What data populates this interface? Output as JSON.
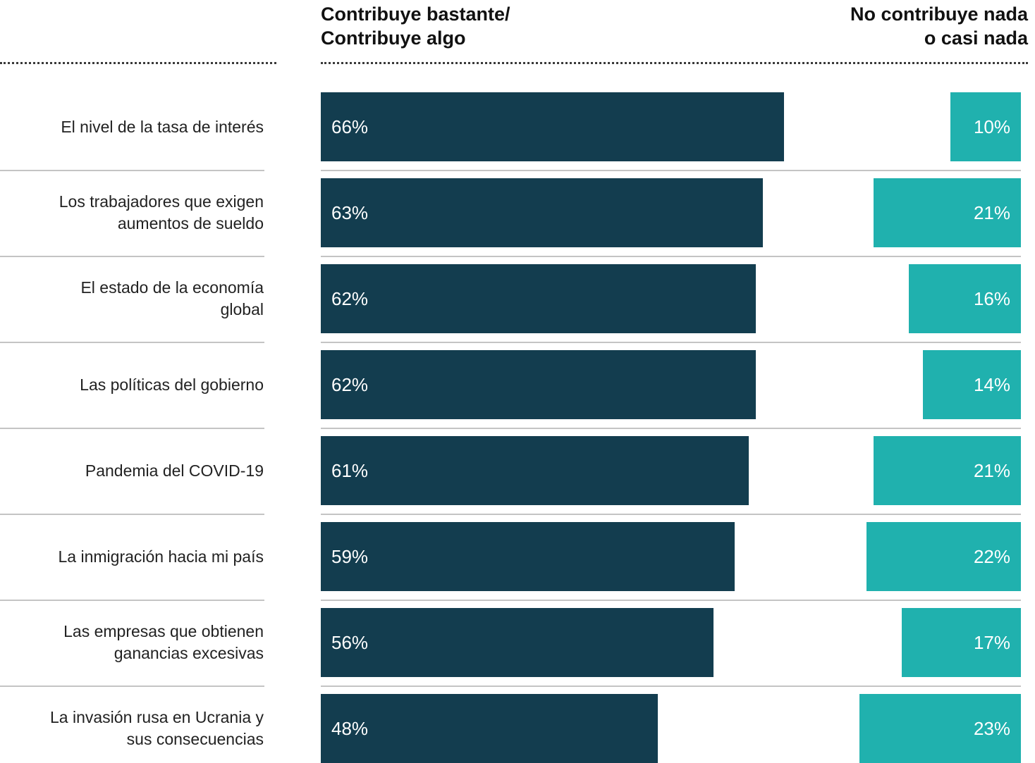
{
  "chart_data": {
    "type": "bar",
    "orientation": "horizontal",
    "layout": "diverging",
    "headers": {
      "left": "Contribuye bastante/\nContribuye algo",
      "right": "No contribuye nada\no casi nada"
    },
    "categories": [
      "El nivel de la tasa de interés",
      "Los trabajadores que exigen\naumentos de sueldo",
      "El estado de la economía\nglobal",
      "Las políticas del gobierno",
      "Pandemia del COVID-19",
      "La inmigración hacia mi país",
      "Las empresas que obtienen\nganancias excesivas",
      "La invasión rusa en Ucrania y\nsus consecuencias"
    ],
    "series": [
      {
        "name": "Contribuye bastante/ Contribuye algo",
        "values": [
          66,
          63,
          62,
          62,
          61,
          59,
          56,
          48
        ],
        "labels": [
          "66%",
          "63%",
          "62%",
          "62%",
          "61%",
          "59%",
          "56%",
          "48%"
        ],
        "color": "#133d4f"
      },
      {
        "name": "No contribuye nada o casi nada",
        "values": [
          10,
          21,
          16,
          14,
          21,
          22,
          17,
          23
        ],
        "labels": [
          "10%",
          "21%",
          "16%",
          "14%",
          "21%",
          "22%",
          "17%",
          "23%"
        ],
        "color": "#20b1ae"
      }
    ],
    "xlim": [
      0,
      100
    ],
    "grid": false,
    "legend": "none"
  }
}
